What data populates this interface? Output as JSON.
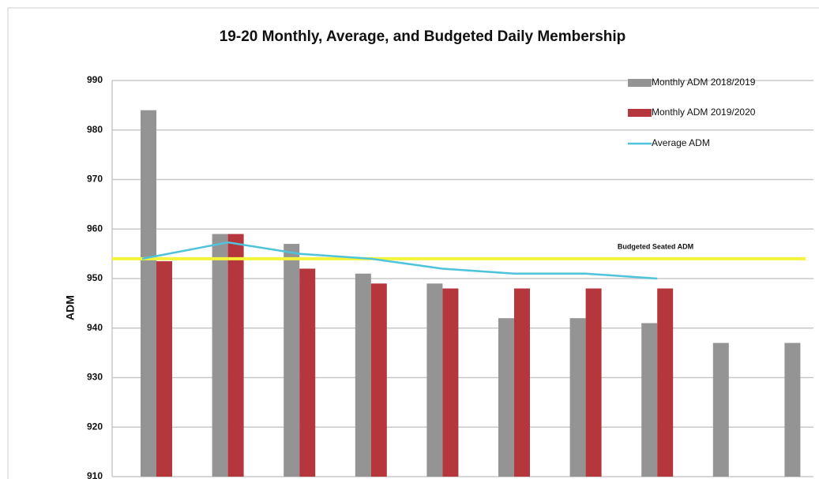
{
  "chart_data": {
    "type": "bar",
    "title": "19-20 Monthly, Average, and Budgeted Daily Membership",
    "y_label": "ADM",
    "categories": [
      null,
      null,
      null,
      null,
      null,
      null,
      null,
      null,
      null,
      null
    ],
    "series": [
      {
        "name": "Monthly ADM 2018/2019",
        "color": "#949494",
        "values": [
          984,
          959,
          957,
          951,
          949,
          942,
          942,
          941,
          937,
          937
        ]
      },
      {
        "name": "Monthly ADM 2019/2020",
        "color": "#b5373d",
        "values": [
          953.5,
          959,
          952,
          949,
          948,
          948,
          948,
          948,
          null,
          null
        ]
      },
      {
        "name": "Average ADM",
        "type": "line",
        "color": "#4fc3dc",
        "values": [
          954,
          957.3,
          955,
          954,
          952,
          951,
          951,
          950,
          null,
          null
        ]
      }
    ],
    "budget": {
      "label": "Budgeted Seated ADM",
      "value": 954,
      "color": "#f4f43a"
    },
    "ylim": [
      910,
      990
    ],
    "yticks": [
      910,
      920,
      930,
      940,
      950,
      960,
      970,
      980,
      990
    ],
    "grid": true,
    "legend": "upper right"
  }
}
